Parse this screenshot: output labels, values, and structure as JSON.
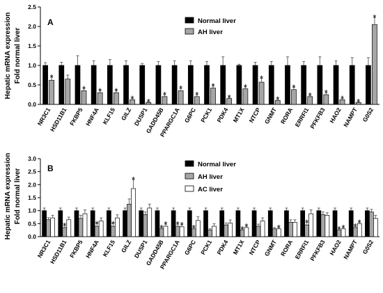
{
  "chart_data": [
    {
      "type": "bar",
      "panel": "A",
      "ylabel": [
        "Hepatic mRNA expression",
        "Fold normal liver"
      ],
      "ylim": [
        0,
        2.5
      ],
      "yticks": [
        "0.0",
        "0.5",
        "1.0",
        "1.5",
        "2.0",
        "2.5"
      ],
      "legend_position": "top-center",
      "categories": [
        "NR3C1",
        "HSD11B1",
        "FKBP5",
        "HNF4A",
        "KLF15",
        "GILZ",
        "DUSP1",
        "GADD45B",
        "PPARGC1A",
        "G6PC",
        "PCK1",
        "PDK4",
        "MT1X",
        "NTCP",
        "GNMT",
        "RORA",
        "ERRFI1",
        "PFKFB3",
        "HAO2",
        "NAMPT",
        "G0S2"
      ],
      "series": [
        {
          "name": "Normal liver",
          "color": "#000000",
          "values": [
            1,
            1,
            1,
            1,
            1,
            1,
            1,
            1,
            1,
            1,
            1,
            1,
            1,
            1,
            1,
            1,
            1,
            1,
            1,
            1,
            1
          ],
          "errors": [
            0.07,
            0.08,
            0.25,
            0.12,
            0.15,
            0.12,
            0.05,
            0.1,
            0.12,
            0.12,
            0.1,
            0.22,
            0.03,
            0.08,
            0.1,
            0.22,
            0.1,
            0.22,
            0.12,
            0.2,
            0.2
          ]
        },
        {
          "name": "AH liver",
          "color": "#a6a6a6",
          "values": [
            0.62,
            0.65,
            0.35,
            0.3,
            0.3,
            0.12,
            0.05,
            0.2,
            0.35,
            0.2,
            0.42,
            0.15,
            0.4,
            0.57,
            0.1,
            0.38,
            0.2,
            0.25,
            0.12,
            0.05,
            2.05
          ],
          "errors": [
            0.08,
            0.1,
            0.05,
            0.05,
            0.05,
            0.03,
            0.02,
            0.05,
            0.06,
            0.05,
            0.05,
            0.03,
            0.05,
            0.1,
            0.03,
            0.06,
            0.03,
            0.05,
            0.03,
            0.02,
            0.18
          ]
        }
      ],
      "significance": {
        "AH liver": [
          true,
          false,
          true,
          true,
          true,
          true,
          true,
          true,
          true,
          true,
          true,
          true,
          true,
          true,
          true,
          true,
          true,
          true,
          true,
          true,
          true
        ]
      }
    },
    {
      "type": "bar",
      "panel": "B",
      "ylabel": [
        "Hepatic mRNA expression",
        "Fold normal liver"
      ],
      "ylim": [
        0,
        3.0
      ],
      "yticks": [
        "0.0",
        "0.5",
        "1.0",
        "1.5",
        "2.0",
        "2.5",
        "3.0"
      ],
      "legend_position": "top-center",
      "categories": [
        "NR3C1",
        "HSD11B1",
        "FKBP5",
        "HNF4A",
        "KLF15",
        "GILZ",
        "DUSP1",
        "GADD45B",
        "PPARGC1A",
        "G6PC",
        "PCK1",
        "PDK4",
        "MT1X",
        "NTCP",
        "GNMT",
        "RORA",
        "ERRFI1",
        "PFKFB3",
        "HAO2",
        "NAMPT",
        "G0S2"
      ],
      "series": [
        {
          "name": "Normal liver",
          "color": "#000000",
          "values": [
            1,
            1,
            1,
            1,
            1,
            1,
            1,
            1,
            1,
            1,
            1,
            1,
            1,
            1,
            1,
            1,
            1,
            1,
            1,
            1,
            1
          ],
          "errors": [
            0.1,
            0.1,
            0.1,
            0.1,
            0.1,
            0.1,
            0.1,
            0.1,
            0.1,
            0.1,
            0.1,
            0.1,
            0.1,
            0.1,
            0.1,
            0.1,
            0.1,
            0.1,
            0.1,
            0.1,
            0.1
          ]
        },
        {
          "name": "AH liver",
          "color": "#a6a6a6",
          "values": [
            0.65,
            0.35,
            0.7,
            0.4,
            0.4,
            1.25,
            0.85,
            0.3,
            0.4,
            0.3,
            0.25,
            0.45,
            0.25,
            0.4,
            0.3,
            0.55,
            0.45,
            0.85,
            0.25,
            0.35,
            0.95
          ],
          "errors": [
            0.08,
            0.08,
            0.12,
            0.1,
            0.1,
            0.2,
            0.1,
            0.05,
            0.08,
            0.05,
            0.05,
            0.08,
            0.05,
            0.08,
            0.05,
            0.1,
            0.1,
            0.1,
            0.05,
            0.05,
            0.1
          ]
        },
        {
          "name": "AC liver",
          "color": "#ffffff",
          "values": [
            0.72,
            0.65,
            0.88,
            0.6,
            0.72,
            1.85,
            1.1,
            0.4,
            0.38,
            0.62,
            0.4,
            0.52,
            0.35,
            0.6,
            0.3,
            0.55,
            0.88,
            0.82,
            0.3,
            0.5,
            0.7
          ],
          "errors": [
            0.1,
            0.1,
            0.15,
            0.12,
            0.12,
            0.35,
            0.15,
            0.08,
            0.08,
            0.15,
            0.1,
            0.12,
            0.05,
            0.12,
            0.05,
            0.1,
            0.15,
            0.1,
            0.05,
            0.05,
            0.12
          ]
        }
      ],
      "significance": {
        "AH liver": [
          false,
          true,
          false,
          true,
          true,
          false,
          false,
          true,
          true,
          true,
          false,
          false,
          true,
          false,
          false,
          false,
          true,
          false,
          true,
          true,
          false
        ],
        "AC liver": [
          false,
          false,
          false,
          false,
          false,
          true,
          false,
          true,
          true,
          false,
          false,
          false,
          true,
          false,
          true,
          false,
          false,
          false,
          true,
          true,
          false
        ]
      }
    }
  ]
}
